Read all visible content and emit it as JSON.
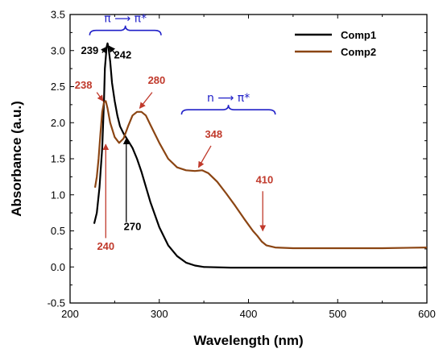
{
  "chart_data": {
    "type": "line",
    "xlabel": "Wavelength (nm)",
    "ylabel": "Absorbance (a.u.)",
    "xlim": [
      200,
      600
    ],
    "ylim": [
      -0.5,
      3.5
    ],
    "xticks": [
      "200",
      "300",
      "400",
      "500",
      "600"
    ],
    "yticks": [
      "-0.5",
      "0.0",
      "0.5",
      "1.0",
      "1.5",
      "2.0",
      "2.5",
      "3.0",
      "3.5"
    ],
    "grid": false,
    "legend_position": "top-right",
    "series": [
      {
        "name": "Comp1",
        "color": "#000000",
        "points": [
          [
            227,
            0.6
          ],
          [
            230,
            0.75
          ],
          [
            233,
            1.1
          ],
          [
            236,
            1.65
          ],
          [
            238,
            2.3
          ],
          [
            239,
            2.75
          ],
          [
            240,
            2.9
          ],
          [
            241,
            3.05
          ],
          [
            242,
            3.1
          ],
          [
            243,
            3.05
          ],
          [
            245,
            2.85
          ],
          [
            247,
            2.55
          ],
          [
            250,
            2.3
          ],
          [
            253,
            2.1
          ],
          [
            256,
            1.95
          ],
          [
            260,
            1.85
          ],
          [
            265,
            1.75
          ],
          [
            270,
            1.65
          ],
          [
            275,
            1.5
          ],
          [
            280,
            1.32
          ],
          [
            290,
            0.9
          ],
          [
            300,
            0.55
          ],
          [
            310,
            0.3
          ],
          [
            320,
            0.15
          ],
          [
            330,
            0.06
          ],
          [
            340,
            0.02
          ],
          [
            350,
            0.0
          ],
          [
            380,
            -0.01
          ],
          [
            420,
            -0.01
          ],
          [
            500,
            -0.01
          ],
          [
            600,
            -0.01
          ]
        ]
      },
      {
        "name": "Comp2",
        "color": "#8b4513",
        "points": [
          [
            228,
            1.1
          ],
          [
            230,
            1.25
          ],
          [
            232,
            1.5
          ],
          [
            234,
            1.85
          ],
          [
            236,
            2.15
          ],
          [
            238,
            2.28
          ],
          [
            240,
            2.3
          ],
          [
            242,
            2.2
          ],
          [
            245,
            2.0
          ],
          [
            250,
            1.8
          ],
          [
            255,
            1.72
          ],
          [
            260,
            1.78
          ],
          [
            265,
            1.95
          ],
          [
            270,
            2.1
          ],
          [
            275,
            2.15
          ],
          [
            280,
            2.15
          ],
          [
            285,
            2.1
          ],
          [
            290,
            1.97
          ],
          [
            300,
            1.72
          ],
          [
            310,
            1.5
          ],
          [
            320,
            1.38
          ],
          [
            330,
            1.34
          ],
          [
            340,
            1.33
          ],
          [
            348,
            1.34
          ],
          [
            355,
            1.3
          ],
          [
            365,
            1.18
          ],
          [
            375,
            1.02
          ],
          [
            385,
            0.85
          ],
          [
            395,
            0.67
          ],
          [
            405,
            0.5
          ],
          [
            410,
            0.43
          ],
          [
            415,
            0.35
          ],
          [
            420,
            0.3
          ],
          [
            430,
            0.27
          ],
          [
            450,
            0.26
          ],
          [
            500,
            0.26
          ],
          [
            550,
            0.26
          ],
          [
            600,
            0.27
          ]
        ]
      }
    ],
    "annotations": [
      {
        "text": "239",
        "color": "#000000",
        "x": 222,
        "y": 2.95
      },
      {
        "text": "242",
        "color": "#000000",
        "x": 259,
        "y": 2.89
      },
      {
        "text": "238",
        "color": "#c0392b",
        "x": 215,
        "y": 2.47
      },
      {
        "text": "280",
        "color": "#c0392b",
        "x": 297,
        "y": 2.54
      },
      {
        "text": "348",
        "color": "#c0392b",
        "x": 361,
        "y": 1.79
      },
      {
        "text": "410",
        "color": "#c0392b",
        "x": 418,
        "y": 1.16
      },
      {
        "text": "240",
        "color": "#c0392b",
        "x": 240,
        "y": 0.24
      },
      {
        "text": "270",
        "color": "#000000",
        "x": 270,
        "y": 0.51
      }
    ],
    "transitions": [
      {
        "label": "π ⟶ π*",
        "x_from": 222,
        "x_to": 302,
        "y": 3.28
      },
      {
        "label": "n ⟶ π*",
        "x_from": 325,
        "x_to": 430,
        "y": 2.18
      }
    ]
  }
}
